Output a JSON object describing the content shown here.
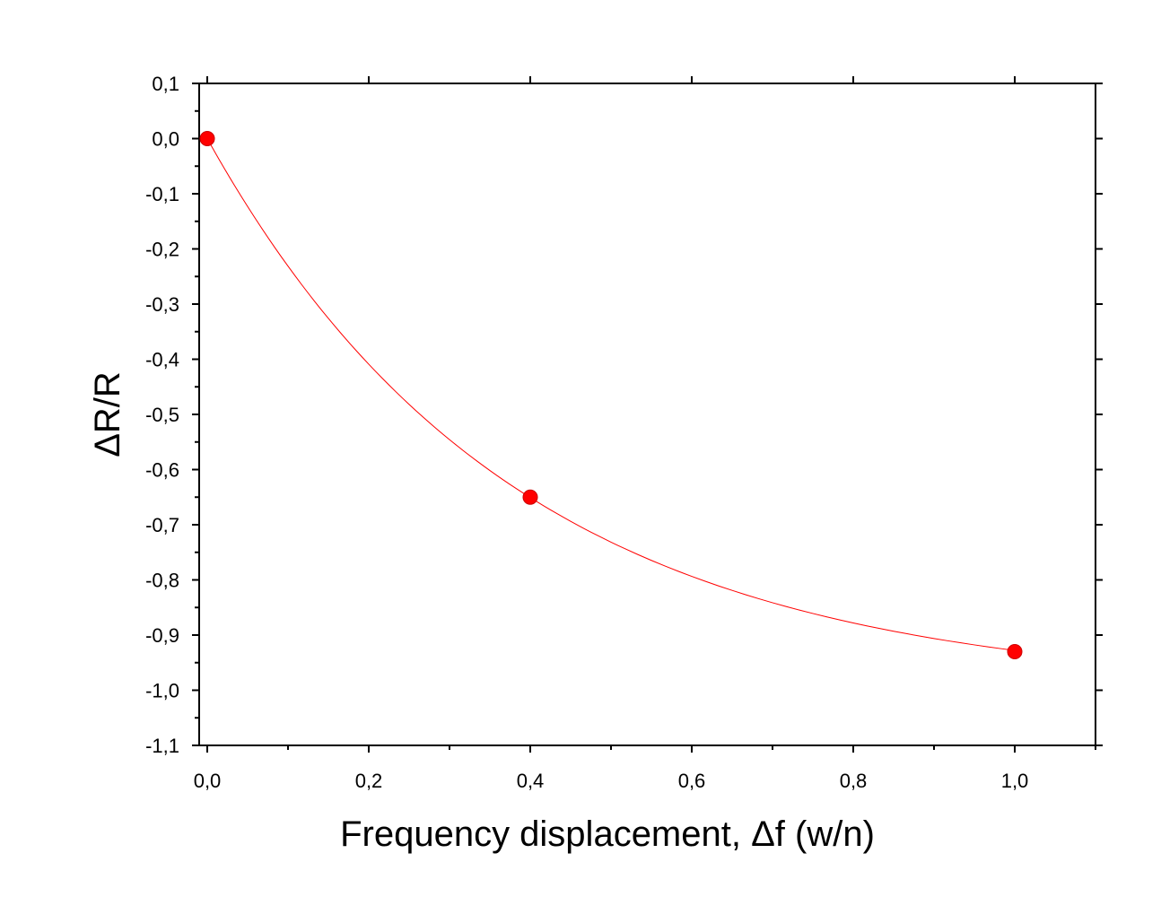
{
  "chart_data": {
    "type": "scatter",
    "xlabel": "Frequency displacement, Δf (w/n)",
    "ylabel": "ΔR/R",
    "xlim": [
      -0.01,
      1.1
    ],
    "ylim": [
      -1.1,
      0.1
    ],
    "x_ticks": [
      "0,0",
      "0,2",
      "0,4",
      "0,6",
      "0,8",
      "1,0"
    ],
    "x_tick_values": [
      0.0,
      0.2,
      0.4,
      0.6,
      0.8,
      1.0
    ],
    "y_ticks": [
      "0,1",
      "0,0",
      "-0,1",
      "-0,2",
      "-0,3",
      "-0,4",
      "-0,5",
      "-0,6",
      "-0,7",
      "-0,8",
      "-0,9",
      "-1,0",
      "-1,1"
    ],
    "y_tick_values": [
      0.1,
      0.0,
      -0.1,
      -0.2,
      -0.3,
      -0.4,
      -0.5,
      -0.6,
      -0.7,
      -0.8,
      -0.9,
      -1.0,
      -1.1
    ],
    "grid": false,
    "series": [
      {
        "x": [
          0.0,
          0.4,
          1.0
        ],
        "y": [
          0.0,
          -0.65,
          -0.93
        ],
        "marker": "circle",
        "color": "#ff0000",
        "line": "smooth"
      }
    ]
  }
}
